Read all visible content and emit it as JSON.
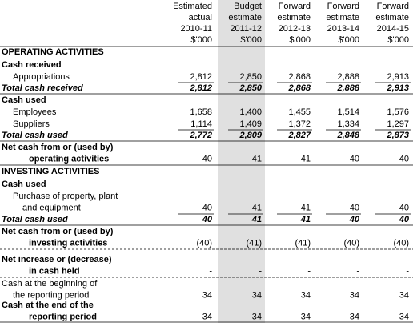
{
  "table": {
    "columns": [
      [
        "Estimated",
        "actual",
        "2010-11",
        "$'000"
      ],
      [
        "Budget",
        "estimate",
        "2011-12",
        "$'000"
      ],
      [
        "Forward",
        "estimate",
        "2012-13",
        "$'000"
      ],
      [
        "Forward",
        "estimate",
        "2013-14",
        "$'000"
      ],
      [
        "Forward",
        "estimate",
        "2014-15",
        "$'000"
      ]
    ],
    "rows": [
      {
        "label": [
          "OPERATING ACTIVITIES"
        ]
      },
      {
        "label": [
          "Cash received"
        ]
      },
      {
        "label": [
          "Appropriations"
        ],
        "values": [
          "2,812",
          "2,850",
          "2,868",
          "2,888",
          "2,913"
        ]
      },
      {
        "label": [
          "Total cash received"
        ],
        "values": [
          "2,812",
          "2,850",
          "2,868",
          "2,888",
          "2,913"
        ]
      },
      {
        "label": [
          "Cash used"
        ]
      },
      {
        "label": [
          "Employees"
        ],
        "values": [
          "1,658",
          "1,400",
          "1,455",
          "1,514",
          "1,576"
        ]
      },
      {
        "label": [
          "Suppliers"
        ],
        "values": [
          "1,114",
          "1,409",
          "1,372",
          "1,334",
          "1,297"
        ]
      },
      {
        "label": [
          "Total cash used"
        ],
        "values": [
          "2,772",
          "2,809",
          "2,827",
          "2,848",
          "2,873"
        ]
      },
      {
        "label": [
          "Net cash from or (used by)",
          "operating activities"
        ],
        "values": [
          "40",
          "41",
          "41",
          "40",
          "40"
        ]
      },
      {
        "label": [
          "INVESTING ACTIVITIES"
        ]
      },
      {
        "label": [
          "Cash used"
        ]
      },
      {
        "label": [
          "Purchase of property, plant",
          "and equipment"
        ],
        "values": [
          "40",
          "41",
          "41",
          "40",
          "40"
        ]
      },
      {
        "label": [
          "Total cash used"
        ],
        "values": [
          "40",
          "41",
          "41",
          "40",
          "40"
        ]
      },
      {
        "label": [
          "Net cash from or (used by)",
          "investing activities"
        ],
        "values": [
          "(40)",
          "(41)",
          "(41)",
          "(40)",
          "(40)"
        ]
      },
      {
        "label": [
          "Net increase or (decrease)",
          "in cash held"
        ],
        "values": [
          "-",
          "-",
          "-",
          "-",
          "-"
        ]
      },
      {
        "label": [
          "Cash at the beginning of",
          "the reporting period"
        ],
        "values": [
          "34",
          "34",
          "34",
          "34",
          "34"
        ]
      },
      {
        "label": [
          "Cash at the end of the",
          "reporting period"
        ],
        "values": [
          "34",
          "34",
          "34",
          "34",
          "34"
        ]
      }
    ]
  }
}
